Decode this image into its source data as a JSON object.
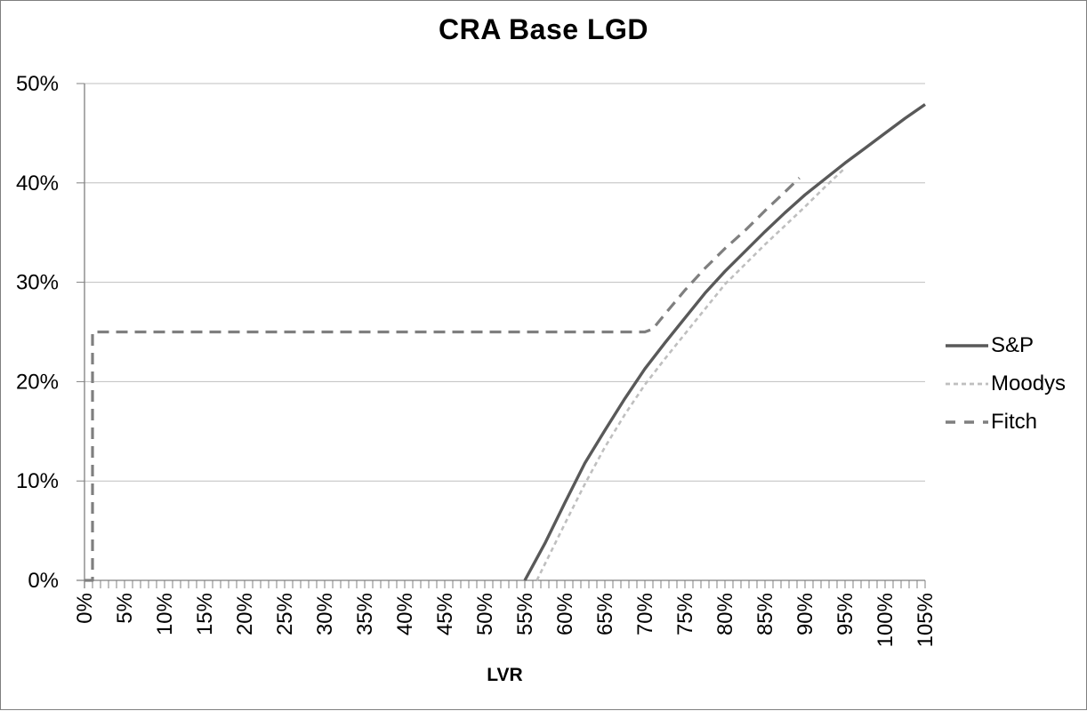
{
  "frame": {
    "background": "#ffffff",
    "border_color": "#7f7f7f"
  },
  "chart_data": {
    "type": "line",
    "title": "CRA Base LGD",
    "xlabel": "LVR",
    "ylabel": "",
    "xlim": [
      0,
      105
    ],
    "ylim": [
      0,
      50
    ],
    "grid": "horizontal-major",
    "legend_position": "right",
    "x_minor_tick_step": 1,
    "x_ticks": [
      {
        "v": 0,
        "label": "0%"
      },
      {
        "v": 5,
        "label": "5%"
      },
      {
        "v": 10,
        "label": "10%"
      },
      {
        "v": 15,
        "label": "15%"
      },
      {
        "v": 20,
        "label": "20%"
      },
      {
        "v": 25,
        "label": "25%"
      },
      {
        "v": 30,
        "label": "30%"
      },
      {
        "v": 35,
        "label": "35%"
      },
      {
        "v": 40,
        "label": "40%"
      },
      {
        "v": 45,
        "label": "45%"
      },
      {
        "v": 50,
        "label": "50%"
      },
      {
        "v": 55,
        "label": "55%"
      },
      {
        "v": 60,
        "label": "60%"
      },
      {
        "v": 65,
        "label": "65%"
      },
      {
        "v": 70,
        "label": "70%"
      },
      {
        "v": 75,
        "label": "75%"
      },
      {
        "v": 80,
        "label": "80%"
      },
      {
        "v": 85,
        "label": "85%"
      },
      {
        "v": 90,
        "label": "90%"
      },
      {
        "v": 95,
        "label": "95%"
      },
      {
        "v": 100,
        "label": "100%"
      },
      {
        "v": 105,
        "label": "105%"
      }
    ],
    "y_ticks": [
      {
        "v": 0,
        "label": "0%"
      },
      {
        "v": 10,
        "label": "10%"
      },
      {
        "v": 20,
        "label": "20%"
      },
      {
        "v": 30,
        "label": "30%"
      },
      {
        "v": 40,
        "label": "40%"
      },
      {
        "v": 50,
        "label": "50%"
      }
    ],
    "colors": {
      "gridline": "#bfbfbf",
      "axis": "#808080",
      "text": "#000000"
    },
    "series": [
      {
        "name": "S&P",
        "color": "#595959",
        "line_style": "solid",
        "points": [
          [
            55,
            0
          ],
          [
            57.5,
            3.7
          ],
          [
            60,
            7.8
          ],
          [
            62.5,
            11.8
          ],
          [
            65,
            15.1
          ],
          [
            67.5,
            18.3
          ],
          [
            70,
            21.3
          ],
          [
            72.5,
            23.9
          ],
          [
            75,
            26.4
          ],
          [
            77.5,
            28.9
          ],
          [
            80,
            31.1
          ],
          [
            82.5,
            33.1
          ],
          [
            85,
            35.1
          ],
          [
            87.5,
            37.0
          ],
          [
            90,
            38.8
          ],
          [
            92.5,
            40.4
          ],
          [
            95,
            42.0
          ],
          [
            97.5,
            43.5
          ],
          [
            100,
            45.0
          ],
          [
            102.5,
            46.5
          ],
          [
            105,
            47.9
          ]
        ]
      },
      {
        "name": "Moodys",
        "color": "#bfbfbf",
        "line_style": "dashed-short",
        "points": [
          [
            56.5,
            0
          ],
          [
            60,
            5.7
          ],
          [
            62.5,
            9.7
          ],
          [
            65,
            13.4
          ],
          [
            67.5,
            16.7
          ],
          [
            70,
            19.7
          ],
          [
            72.5,
            22.3
          ],
          [
            75,
            24.8
          ],
          [
            77.5,
            27.3
          ],
          [
            80,
            29.8
          ],
          [
            82.5,
            31.8
          ],
          [
            85,
            33.8
          ],
          [
            87.5,
            35.7
          ],
          [
            90,
            37.6
          ],
          [
            92.5,
            39.6
          ],
          [
            95,
            41.5
          ]
        ]
      },
      {
        "name": "Fitch",
        "color": "#7f7f7f",
        "line_style": "dashed-long",
        "points": [
          [
            0,
            0
          ],
          [
            1,
            0
          ],
          [
            1,
            25
          ],
          [
            70,
            25
          ],
          [
            71,
            25.3
          ],
          [
            72.5,
            26.8
          ],
          [
            75,
            29.2
          ],
          [
            77.5,
            31.4
          ],
          [
            80,
            33.4
          ],
          [
            82.5,
            35.2
          ],
          [
            85,
            37.2
          ],
          [
            87.5,
            39.1
          ],
          [
            89.3,
            40.5
          ]
        ]
      }
    ]
  }
}
